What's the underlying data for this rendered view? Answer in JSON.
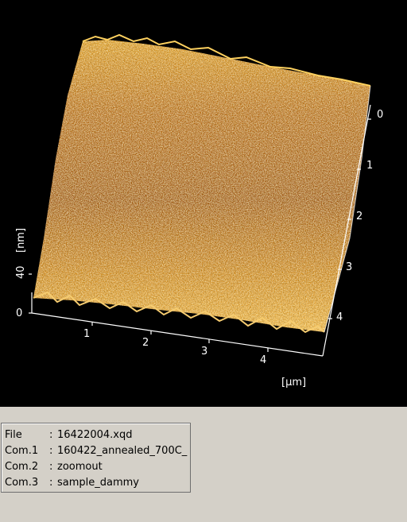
{
  "viewer": {
    "axes": {
      "x_ticks": [
        "1",
        "2",
        "3",
        "4"
      ],
      "y_ticks": [
        "0",
        "1",
        "2",
        "3",
        "4"
      ],
      "z_ticks": [
        "0",
        "40"
      ],
      "z_unit": "[nm]",
      "xy_unit": "[μm]"
    },
    "colors": {
      "background": "#000000",
      "surface_dark": "#7a3a05",
      "surface_mid": "#c97a10",
      "surface_light": "#f3c25a",
      "surface_peak": "#ffe9a8"
    }
  },
  "info": {
    "rows": [
      {
        "key": "File",
        "sep": ":",
        "value": "16422004.xqd"
      },
      {
        "key": "Com.1",
        "sep": ":",
        "value": "160422_annealed_700C_"
      },
      {
        "key": "Com.2",
        "sep": ":",
        "value": "zoomout"
      },
      {
        "key": "Com.3",
        "sep": ":",
        "value": "sample_dammy"
      }
    ]
  }
}
